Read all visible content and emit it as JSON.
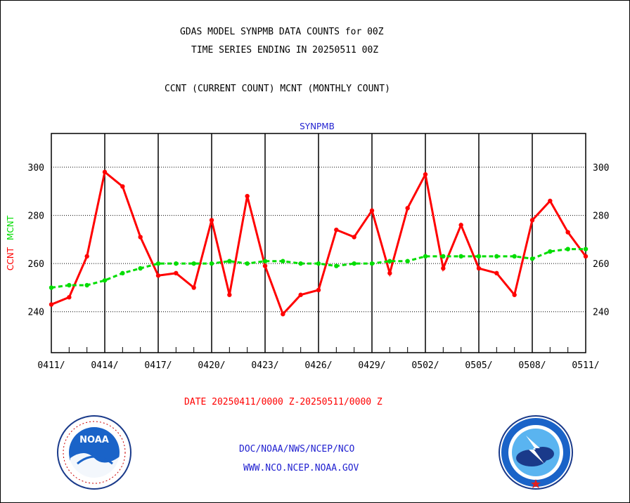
{
  "header": {
    "line1": "GDAS MODEL SYNPMB DATA COUNTS for 00Z",
    "line2": "TIME SERIES ENDING IN 20250511 00Z",
    "line3": "CCNT (CURRENT COUNT) MCNT (MONTHLY COUNT)"
  },
  "footer": {
    "date_range": "DATE 20250411/0000 Z-20250511/0000 Z",
    "org_path": "DOC/NOAA/NWS/NCEP/NCO",
    "website": "WWW.NCO.NCEP.NOAA.GOV"
  },
  "logos": {
    "left": {
      "name": "noaa-logo",
      "text": "NOAA"
    },
    "right": {
      "name": "nws-logo"
    }
  },
  "chart_data": {
    "type": "line",
    "title": "SYNPMB",
    "ylabel_parts": [
      {
        "text": "CCNT",
        "color": "#ff0000"
      },
      {
        "text": "MCNT",
        "color": "#00dd00"
      }
    ],
    "ylim": [
      223,
      314
    ],
    "yticks": [
      240,
      260,
      280,
      300
    ],
    "x": [
      "0411",
      "0412",
      "0413",
      "0414",
      "0415",
      "0416",
      "0417",
      "0418",
      "0419",
      "0420",
      "0421",
      "0422",
      "0423",
      "0424",
      "0425",
      "0426",
      "0427",
      "0428",
      "0429",
      "0430",
      "0501",
      "0502",
      "0503",
      "0504",
      "0505",
      "0506",
      "0507",
      "0508",
      "0509",
      "0510",
      "0511"
    ],
    "xtick_labels": [
      "0411/",
      "0414/",
      "0417/",
      "0420/",
      "0423/",
      "0426/",
      "0429/",
      "0502/",
      "0505/",
      "0508/",
      "0511/"
    ],
    "grid": true,
    "series": [
      {
        "name": "CCNT",
        "color": "#ff0000",
        "style": "solid",
        "values": [
          243,
          246,
          263,
          298,
          292,
          271,
          255,
          256,
          250,
          278,
          247,
          288,
          259,
          239,
          247,
          249,
          274,
          271,
          282,
          256,
          283,
          297,
          258,
          276,
          258,
          256,
          247,
          278,
          286,
          273,
          263
        ]
      },
      {
        "name": "MCNT",
        "color": "#00dd00",
        "style": "dashed",
        "values": [
          250,
          251,
          251,
          253,
          256,
          258,
          260,
          260,
          260,
          260,
          261,
          260,
          261,
          261,
          260,
          260,
          259,
          260,
          260,
          261,
          261,
          263,
          263,
          263,
          263,
          263,
          263,
          262,
          265,
          266,
          266
        ]
      }
    ]
  }
}
